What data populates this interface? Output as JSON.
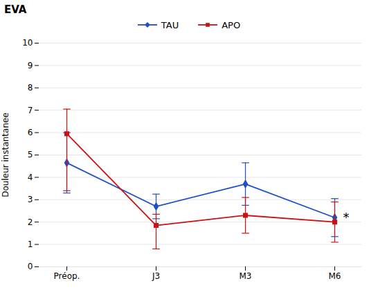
{
  "chart_data": {
    "type": "line",
    "title": "EVA",
    "categories": [
      "Préop.",
      "J3",
      "M3",
      "M6"
    ],
    "series": [
      {
        "name": "TAU",
        "color": "#1f4fc8",
        "marker": "diamond",
        "values": [
          4.65,
          2.7,
          3.7,
          2.2
        ],
        "errors": [
          1.35,
          0.55,
          0.95,
          0.85
        ]
      },
      {
        "name": "APO",
        "color": "#cc1111",
        "marker": "square",
        "values": [
          5.95,
          1.85,
          2.3,
          2.0
        ],
        "errors_lower": [
          2.55,
          1.05,
          0.8,
          0.9
        ],
        "errors_upper": [
          1.1,
          0.5,
          0.8,
          0.9
        ]
      }
    ],
    "ylabel": "Douleur instantanee",
    "ylim": [
      0,
      10
    ],
    "yticks": [
      0,
      1,
      2,
      3,
      4,
      5,
      6,
      7,
      8,
      9,
      10
    ],
    "grid": true,
    "legend": "top",
    "annotations": [
      {
        "text": "*",
        "x": "M6",
        "y": 2.2
      }
    ]
  }
}
